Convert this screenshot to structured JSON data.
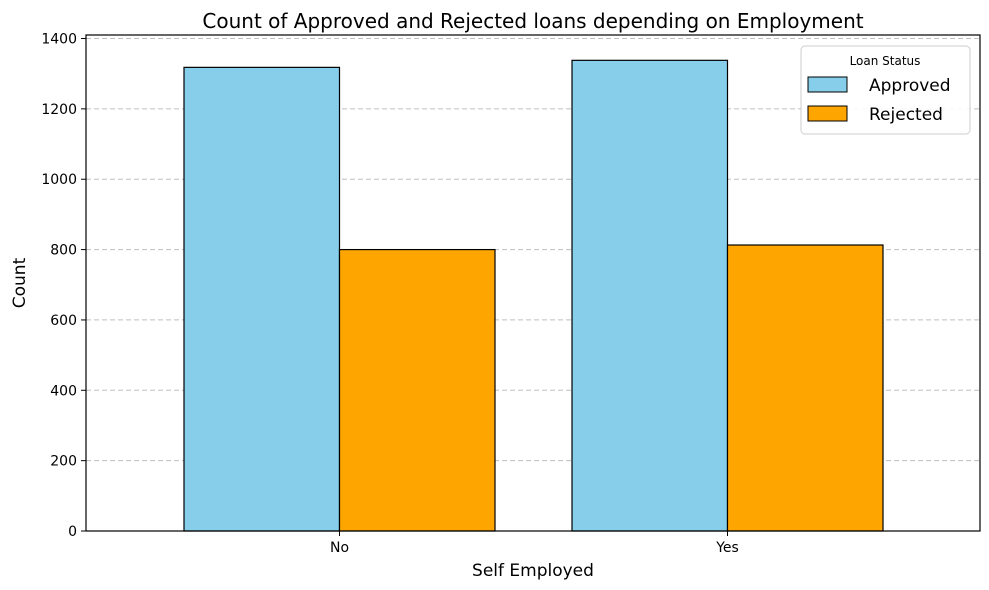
{
  "chart_data": {
    "type": "bar",
    "title": "Count of Approved and Rejected loans depending on Employment",
    "xlabel": "Self Employed",
    "ylabel": "Count",
    "categories": [
      "No",
      "Yes"
    ],
    "series": [
      {
        "name": "Approved",
        "values": [
          1318,
          1338
        ],
        "color": "#87ceeb"
      },
      {
        "name": "Rejected",
        "values": [
          800,
          813
        ],
        "color": "#ffa500"
      }
    ],
    "ylim": [
      0,
      1410
    ],
    "yticks": [
      0,
      200,
      400,
      600,
      800,
      1000,
      1200,
      1400
    ],
    "grid": true,
    "legend": {
      "title": "Loan Status",
      "placement": "top-right"
    }
  }
}
